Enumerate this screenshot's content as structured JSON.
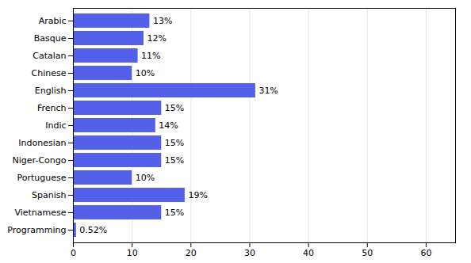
{
  "chart_data": {
    "type": "bar",
    "orientation": "horizontal",
    "categories": [
      "Arabic",
      "Basque",
      "Catalan",
      "Chinese",
      "English",
      "French",
      "Indic",
      "Indonesian",
      "Niger-Congo",
      "Portuguese",
      "Spanish",
      "Vietnamese",
      "Programming"
    ],
    "values": [
      13,
      12,
      11,
      10,
      31,
      15,
      14,
      15,
      15,
      10,
      19,
      15,
      0.52
    ],
    "value_labels": [
      "13%",
      "12%",
      "11%",
      "10%",
      "31%",
      "15%",
      "14%",
      "15%",
      "15%",
      "10%",
      "19%",
      "15%",
      "0.52%"
    ],
    "data_labels": true,
    "color": "#5560e8",
    "xlim": [
      0,
      65
    ],
    "xticks": [
      0,
      10,
      20,
      30,
      40,
      50,
      60
    ],
    "grid": true
  }
}
